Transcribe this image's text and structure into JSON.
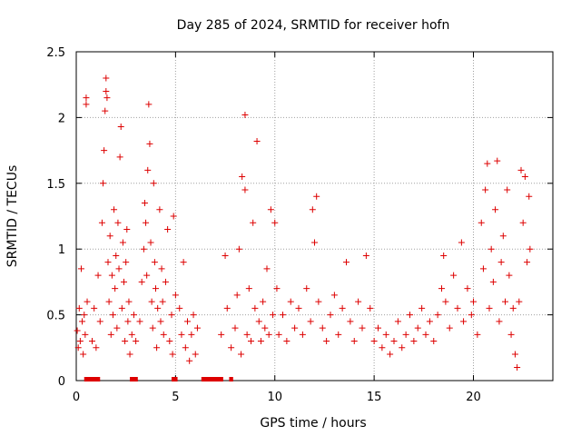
{
  "chart_data": {
    "type": "scatter",
    "title": "Day 285 of 2024, SRMTID for receiver hofn",
    "xlabel": "GPS time / hours",
    "ylabel": "SRMTID / TECUs",
    "xlim": [
      0,
      24
    ],
    "ylim": [
      0,
      2.5
    ],
    "x_ticks": [
      0,
      5,
      10,
      15,
      20
    ],
    "x_tick_labels": [
      "0",
      "5",
      "10",
      "15",
      "20"
    ],
    "y_ticks": [
      0,
      0.5,
      1,
      1.5,
      2,
      2.5
    ],
    "y_tick_labels": [
      "0",
      "0.5",
      "1",
      "1.5",
      "2",
      "2.5"
    ],
    "grid": true,
    "marker": "plus",
    "color": "#dd0000",
    "series": [
      {
        "name": "SRMTID",
        "points": [
          [
            0.05,
            0.38
          ],
          [
            0.1,
            0.25
          ],
          [
            0.15,
            0.55
          ],
          [
            0.2,
            0.3
          ],
          [
            0.25,
            0.85
          ],
          [
            0.3,
            0.45
          ],
          [
            0.35,
            0.2
          ],
          [
            0.4,
            0.5
          ],
          [
            0.45,
            0.35
          ],
          [
            0.5,
            2.15
          ],
          [
            0.5,
            2.1
          ],
          [
            0.55,
            0.6
          ],
          [
            0.8,
            0.3
          ],
          [
            0.9,
            0.55
          ],
          [
            1.0,
            0.25
          ],
          [
            1.1,
            0.8
          ],
          [
            1.2,
            0.45
          ],
          [
            1.3,
            1.2
          ],
          [
            1.35,
            1.5
          ],
          [
            1.4,
            1.75
          ],
          [
            1.45,
            2.05
          ],
          [
            1.5,
            2.3
          ],
          [
            1.5,
            2.2
          ],
          [
            1.55,
            2.15
          ],
          [
            1.6,
            0.9
          ],
          [
            1.65,
            0.6
          ],
          [
            1.7,
            1.1
          ],
          [
            1.75,
            0.35
          ],
          [
            1.8,
            0.8
          ],
          [
            1.85,
            0.5
          ],
          [
            1.9,
            1.3
          ],
          [
            1.95,
            0.7
          ],
          [
            2.0,
            0.95
          ],
          [
            2.05,
            0.4
          ],
          [
            2.1,
            1.2
          ],
          [
            2.15,
            0.85
          ],
          [
            2.2,
            1.7
          ],
          [
            2.25,
            1.93
          ],
          [
            2.3,
            0.55
          ],
          [
            2.35,
            1.05
          ],
          [
            2.4,
            0.75
          ],
          [
            2.45,
            0.3
          ],
          [
            2.5,
            0.9
          ],
          [
            2.55,
            1.15
          ],
          [
            2.6,
            0.45
          ],
          [
            2.65,
            0.6
          ],
          [
            2.7,
            0.2
          ],
          [
            2.8,
            0.35
          ],
          [
            2.9,
            0.5
          ],
          [
            3.0,
            0.3
          ],
          [
            3.2,
            0.45
          ],
          [
            3.3,
            0.75
          ],
          [
            3.4,
            1.0
          ],
          [
            3.45,
            1.35
          ],
          [
            3.5,
            1.2
          ],
          [
            3.55,
            0.8
          ],
          [
            3.6,
            1.6
          ],
          [
            3.65,
            2.1
          ],
          [
            3.7,
            1.8
          ],
          [
            3.75,
            1.05
          ],
          [
            3.8,
            0.6
          ],
          [
            3.85,
            0.4
          ],
          [
            3.9,
            1.5
          ],
          [
            3.95,
            0.9
          ],
          [
            4.0,
            0.7
          ],
          [
            4.05,
            0.25
          ],
          [
            4.1,
            0.55
          ],
          [
            4.2,
            1.3
          ],
          [
            4.25,
            0.45
          ],
          [
            4.3,
            0.85
          ],
          [
            4.35,
            0.6
          ],
          [
            4.4,
            0.35
          ],
          [
            4.5,
            0.75
          ],
          [
            4.6,
            1.15
          ],
          [
            4.7,
            0.3
          ],
          [
            4.8,
            0.5
          ],
          [
            4.85,
            0.2
          ],
          [
            4.9,
            1.25
          ],
          [
            5.0,
            0.65
          ],
          [
            5.2,
            0.55
          ],
          [
            5.3,
            0.35
          ],
          [
            5.4,
            0.9
          ],
          [
            5.5,
            0.25
          ],
          [
            5.6,
            0.45
          ],
          [
            5.7,
            0.15
          ],
          [
            5.8,
            0.35
          ],
          [
            5.9,
            0.5
          ],
          [
            6.0,
            0.2
          ],
          [
            6.1,
            0.4
          ],
          [
            7.3,
            0.35
          ],
          [
            7.5,
            0.95
          ],
          [
            7.6,
            0.55
          ],
          [
            7.8,
            0.25
          ],
          [
            8.0,
            0.4
          ],
          [
            8.1,
            0.65
          ],
          [
            8.2,
            1.0
          ],
          [
            8.3,
            0.2
          ],
          [
            8.35,
            1.55
          ],
          [
            8.5,
            2.02
          ],
          [
            8.5,
            1.45
          ],
          [
            8.6,
            0.35
          ],
          [
            8.7,
            0.7
          ],
          [
            8.8,
            0.3
          ],
          [
            8.9,
            1.2
          ],
          [
            9.0,
            0.55
          ],
          [
            9.1,
            1.82
          ],
          [
            9.2,
            0.45
          ],
          [
            9.3,
            0.3
          ],
          [
            9.4,
            0.6
          ],
          [
            9.5,
            0.4
          ],
          [
            9.6,
            0.85
          ],
          [
            9.7,
            0.35
          ],
          [
            9.8,
            1.3
          ],
          [
            9.9,
            0.5
          ],
          [
            10.0,
            1.2
          ],
          [
            10.1,
            0.7
          ],
          [
            10.2,
            0.35
          ],
          [
            10.4,
            0.5
          ],
          [
            10.6,
            0.3
          ],
          [
            10.8,
            0.6
          ],
          [
            11.0,
            0.4
          ],
          [
            11.2,
            0.55
          ],
          [
            11.4,
            0.35
          ],
          [
            11.6,
            0.7
          ],
          [
            11.8,
            0.45
          ],
          [
            11.9,
            1.3
          ],
          [
            12.0,
            1.05
          ],
          [
            12.1,
            1.4
          ],
          [
            12.2,
            0.6
          ],
          [
            12.4,
            0.4
          ],
          [
            12.6,
            0.3
          ],
          [
            12.8,
            0.5
          ],
          [
            13.0,
            0.65
          ],
          [
            13.2,
            0.35
          ],
          [
            13.4,
            0.55
          ],
          [
            13.6,
            0.9
          ],
          [
            13.8,
            0.45
          ],
          [
            14.0,
            0.3
          ],
          [
            14.2,
            0.6
          ],
          [
            14.4,
            0.4
          ],
          [
            14.6,
            0.95
          ],
          [
            14.8,
            0.55
          ],
          [
            15.0,
            0.3
          ],
          [
            15.2,
            0.4
          ],
          [
            15.4,
            0.25
          ],
          [
            15.6,
            0.35
          ],
          [
            15.8,
            0.2
          ],
          [
            16.0,
            0.3
          ],
          [
            16.2,
            0.45
          ],
          [
            16.4,
            0.25
          ],
          [
            16.6,
            0.35
          ],
          [
            16.8,
            0.5
          ],
          [
            17.0,
            0.3
          ],
          [
            17.2,
            0.4
          ],
          [
            17.4,
            0.55
          ],
          [
            17.6,
            0.35
          ],
          [
            17.8,
            0.45
          ],
          [
            18.0,
            0.3
          ],
          [
            18.2,
            0.5
          ],
          [
            18.4,
            0.7
          ],
          [
            18.5,
            0.95
          ],
          [
            18.6,
            0.6
          ],
          [
            18.8,
            0.4
          ],
          [
            19.0,
            0.8
          ],
          [
            19.2,
            0.55
          ],
          [
            19.4,
            1.05
          ],
          [
            19.5,
            0.45
          ],
          [
            19.7,
            0.7
          ],
          [
            19.9,
            0.5
          ],
          [
            20.0,
            0.6
          ],
          [
            20.2,
            0.35
          ],
          [
            20.4,
            1.2
          ],
          [
            20.5,
            0.85
          ],
          [
            20.6,
            1.45
          ],
          [
            20.7,
            1.65
          ],
          [
            20.8,
            0.55
          ],
          [
            20.9,
            1.0
          ],
          [
            21.0,
            0.75
          ],
          [
            21.1,
            1.3
          ],
          [
            21.2,
            1.67
          ],
          [
            21.3,
            0.45
          ],
          [
            21.4,
            0.9
          ],
          [
            21.5,
            1.1
          ],
          [
            21.6,
            0.6
          ],
          [
            21.7,
            1.45
          ],
          [
            21.8,
            0.8
          ],
          [
            21.9,
            0.35
          ],
          [
            22.0,
            0.55
          ],
          [
            22.1,
            0.2
          ],
          [
            22.2,
            0.1
          ],
          [
            22.3,
            0.6
          ],
          [
            22.4,
            1.6
          ],
          [
            22.5,
            1.2
          ],
          [
            22.6,
            1.55
          ],
          [
            22.7,
            0.9
          ],
          [
            22.8,
            1.4
          ],
          [
            22.85,
            1.0
          ]
        ]
      }
    ],
    "gaps": [
      [
        0.4,
        1.2
      ],
      [
        2.7,
        3.1
      ],
      [
        4.8,
        5.1
      ],
      [
        6.3,
        7.4
      ],
      [
        7.7,
        7.9
      ]
    ]
  }
}
